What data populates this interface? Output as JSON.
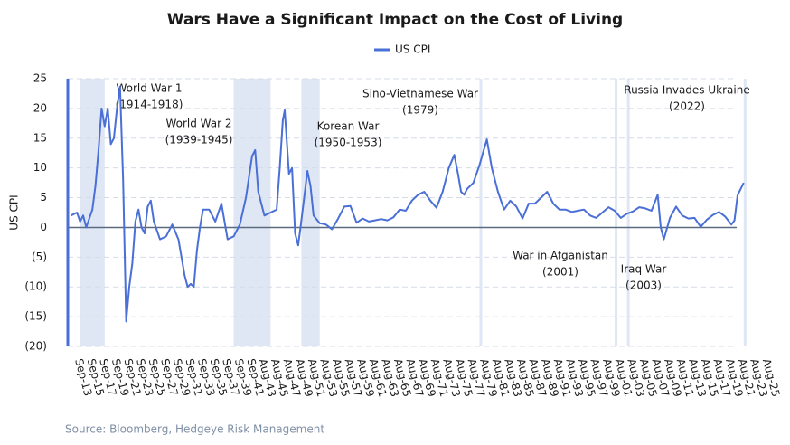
{
  "chart_data": {
    "type": "line",
    "title": "Wars Have a Significant Impact on the Cost of Living",
    "y_label": "US CPI",
    "source": "Source: Bloomberg, Hedgeye Risk Management",
    "legend_position": "top",
    "grid": true,
    "series": [
      {
        "name": "US CPI",
        "color": "#4a6fd6",
        "x": [
          1912.5,
          1913.5,
          1914,
          1914.5,
          1915,
          1915.5,
          1916,
          1916.5,
          1917,
          1917.5,
          1918,
          1918.5,
          1919,
          1919.5,
          1920,
          1920.5,
          1921,
          1921.5,
          1922,
          1922.5,
          1923,
          1923.5,
          1924,
          1924.5,
          1925,
          1925.5,
          1926,
          1927,
          1928,
          1929,
          1930,
          1931,
          1931.5,
          1932,
          1932.5,
          1933,
          1933.5,
          1934,
          1935,
          1936,
          1937,
          1938,
          1939,
          1940,
          1941,
          1942,
          1942.5,
          1943,
          1944,
          1945,
          1946,
          1946.5,
          1947,
          1947.3,
          1948,
          1948.5,
          1949,
          1949.5,
          1950,
          1951,
          1951.5,
          1952,
          1953,
          1954,
          1955,
          1956,
          1957,
          1958,
          1959,
          1960,
          1961,
          1962,
          1963,
          1964,
          1965,
          1966,
          1967,
          1968,
          1969,
          1970,
          1971,
          1972,
          1973,
          1974,
          1974.9,
          1975.5,
          1976,
          1976.5,
          1977,
          1978,
          1979,
          1980.2,
          1981,
          1982,
          1983,
          1984,
          1985,
          1986,
          1987,
          1988,
          1989,
          1990,
          1991,
          1992,
          1993,
          1994,
          1995,
          1996,
          1997,
          1998,
          1999,
          2000,
          2001,
          2002,
          2003,
          2004,
          2005,
          2006,
          2007,
          2008,
          2008.5,
          2009,
          2010,
          2011,
          2012,
          2013,
          2014,
          2015,
          2016,
          2017,
          2018,
          2019,
          2020,
          2020.5,
          2021,
          2022
        ],
        "values": [
          2,
          2.5,
          1,
          2,
          0,
          1.5,
          3,
          7,
          13,
          20,
          17,
          20,
          14,
          15,
          20,
          23.7,
          8,
          -15.8,
          -10,
          -6,
          1,
          3,
          0,
          -1,
          3.5,
          4.5,
          1,
          -2,
          -1.5,
          0.5,
          -2,
          -8,
          -10,
          -9.5,
          -10,
          -4,
          0,
          3,
          3,
          1,
          4,
          -2,
          -1.5,
          0.5,
          5,
          12,
          13,
          6,
          2,
          2.5,
          3,
          10,
          18,
          19.7,
          9,
          10,
          -1,
          -3,
          1,
          9.5,
          7,
          2,
          0.7,
          0.5,
          -0.3,
          1.5,
          3.5,
          3.6,
          0.8,
          1.5,
          1,
          1.2,
          1.4,
          1.2,
          1.7,
          3,
          2.8,
          4.5,
          5.5,
          6,
          4.5,
          3.3,
          6,
          10,
          12.2,
          9,
          6,
          5.5,
          6.5,
          7.5,
          10.5,
          14.8,
          10,
          6,
          3,
          4.5,
          3.5,
          1.5,
          4,
          4,
          5,
          6,
          4,
          3,
          3,
          2.6,
          2.8,
          3,
          2,
          1.6,
          2.5,
          3.4,
          2.8,
          1.6,
          2.3,
          2.7,
          3.4,
          3.2,
          2.8,
          5.5,
          0,
          -2,
          1.6,
          3.5,
          2,
          1.5,
          1.6,
          0.1,
          1.3,
          2.1,
          2.6,
          1.8,
          0.5,
          1.2,
          5.4,
          7.5
        ]
      }
    ],
    "periods": [
      {
        "name": "World War 1",
        "years": "(1914-1918)",
        "start": 1914,
        "end": 1918
      },
      {
        "name": "World War 2",
        "years": "(1939-1945)",
        "start": 1939,
        "end": 1945
      },
      {
        "name": "Korean War",
        "years": "(1950-1953)",
        "start": 1950,
        "end": 1953
      },
      {
        "name": "Sino-Vietnamese War",
        "years": "(1979)",
        "start": 1979,
        "end": 1979.4
      },
      {
        "name": "War in Afganistan",
        "years": "(2001)",
        "start": 2001,
        "end": 2001.4
      },
      {
        "name": "Iraq War",
        "years": "(2003)",
        "start": 2003,
        "end": 2003.4
      },
      {
        "name": "Russia Invades Ukraine",
        "years": "(2022)",
        "start": 2022,
        "end": 2022.4
      }
    ],
    "xlim": [
      1912,
      2026
    ],
    "xticks": [
      {
        "value": 1913.67,
        "label": "Sep-13"
      },
      {
        "value": 1915.67,
        "label": "Sep-15"
      },
      {
        "value": 1917.67,
        "label": "Sep-17"
      },
      {
        "value": 1919.67,
        "label": "Sep-19"
      },
      {
        "value": 1921.67,
        "label": "Sep-21"
      },
      {
        "value": 1923.67,
        "label": "Sep-23"
      },
      {
        "value": 1925.67,
        "label": "Sep-25"
      },
      {
        "value": 1927.67,
        "label": "Sep-27"
      },
      {
        "value": 1929.67,
        "label": "Sep-29"
      },
      {
        "value": 1931.67,
        "label": "Sep-31"
      },
      {
        "value": 1933.67,
        "label": "Sep-33"
      },
      {
        "value": 1935.67,
        "label": "Sep-35"
      },
      {
        "value": 1937.67,
        "label": "Sep-37"
      },
      {
        "value": 1939.67,
        "label": "Sep-39"
      },
      {
        "value": 1941.67,
        "label": "Sep-41"
      },
      {
        "value": 1943.58,
        "label": "Aug-43"
      },
      {
        "value": 1945.58,
        "label": "Aug-45"
      },
      {
        "value": 1947.58,
        "label": "Aug-47"
      },
      {
        "value": 1949.58,
        "label": "Aug-49"
      },
      {
        "value": 1951.58,
        "label": "Aug-51"
      },
      {
        "value": 1953.58,
        "label": "Aug-53"
      },
      {
        "value": 1955.58,
        "label": "Aug-55"
      },
      {
        "value": 1957.58,
        "label": "Aug-57"
      },
      {
        "value": 1959.58,
        "label": "Aug-59"
      },
      {
        "value": 1961.58,
        "label": "Aug-61"
      },
      {
        "value": 1963.58,
        "label": "Aug-63"
      },
      {
        "value": 1965.58,
        "label": "Aug-65"
      },
      {
        "value": 1967.58,
        "label": "Aug-67"
      },
      {
        "value": 1969.58,
        "label": "Aug-69"
      },
      {
        "value": 1971.58,
        "label": "Aug-71"
      },
      {
        "value": 1973.58,
        "label": "Aug-73"
      },
      {
        "value": 1975.58,
        "label": "Aug-75"
      },
      {
        "value": 1977.58,
        "label": "Aug-77"
      },
      {
        "value": 1979.58,
        "label": "Aug-79"
      },
      {
        "value": 1981.58,
        "label": "Aug-81"
      },
      {
        "value": 1983.58,
        "label": "Aug-83"
      },
      {
        "value": 1985.58,
        "label": "Aug-85"
      },
      {
        "value": 1987.58,
        "label": "Aug-87"
      },
      {
        "value": 1989.58,
        "label": "Aug-89"
      },
      {
        "value": 1991.58,
        "label": "Aug-91"
      },
      {
        "value": 1993.58,
        "label": "Aug-93"
      },
      {
        "value": 1995.58,
        "label": "Aug-95"
      },
      {
        "value": 1997.58,
        "label": "Aug-97"
      },
      {
        "value": 1999.58,
        "label": "Aug-99"
      },
      {
        "value": 2001.58,
        "label": "Aug-01"
      },
      {
        "value": 2003.58,
        "label": "Aug-03"
      },
      {
        "value": 2005.58,
        "label": "Aug-05"
      },
      {
        "value": 2007.58,
        "label": "Aug-07"
      },
      {
        "value": 2009.58,
        "label": "Aug-09"
      },
      {
        "value": 2011.58,
        "label": "Aug-11"
      },
      {
        "value": 2013.58,
        "label": "Aug-13"
      },
      {
        "value": 2015.58,
        "label": "Aug-15"
      },
      {
        "value": 2017.58,
        "label": "Aug-17"
      },
      {
        "value": 2019.58,
        "label": "Aug-19"
      },
      {
        "value": 2021.58,
        "label": "Aug-21"
      },
      {
        "value": 2023.58,
        "label": "Aug-23"
      },
      {
        "value": 2025.58,
        "label": "Aug-25"
      }
    ],
    "ylim": [
      -20,
      25
    ],
    "yticks": [
      25,
      20,
      15,
      10,
      5,
      0,
      {
        "value": -5,
        "label": "(5)"
      },
      {
        "value": -10,
        "label": "(10)"
      },
      {
        "value": -15,
        "label": "(15)"
      },
      {
        "value": -20,
        "label": "(20)"
      }
    ]
  }
}
